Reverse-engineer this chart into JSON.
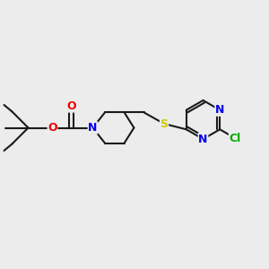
{
  "bg_color": "#ececec",
  "bond_color": "#1a1a1a",
  "bond_width": 1.5,
  "atom_colors": {
    "N": "#0000ee",
    "O": "#ee0000",
    "S": "#cccc00",
    "Cl": "#00aa00",
    "C": "#1a1a1a"
  },
  "font_size": 9,
  "fig_width": 3.0,
  "fig_height": 3.0,
  "dpi": 100
}
